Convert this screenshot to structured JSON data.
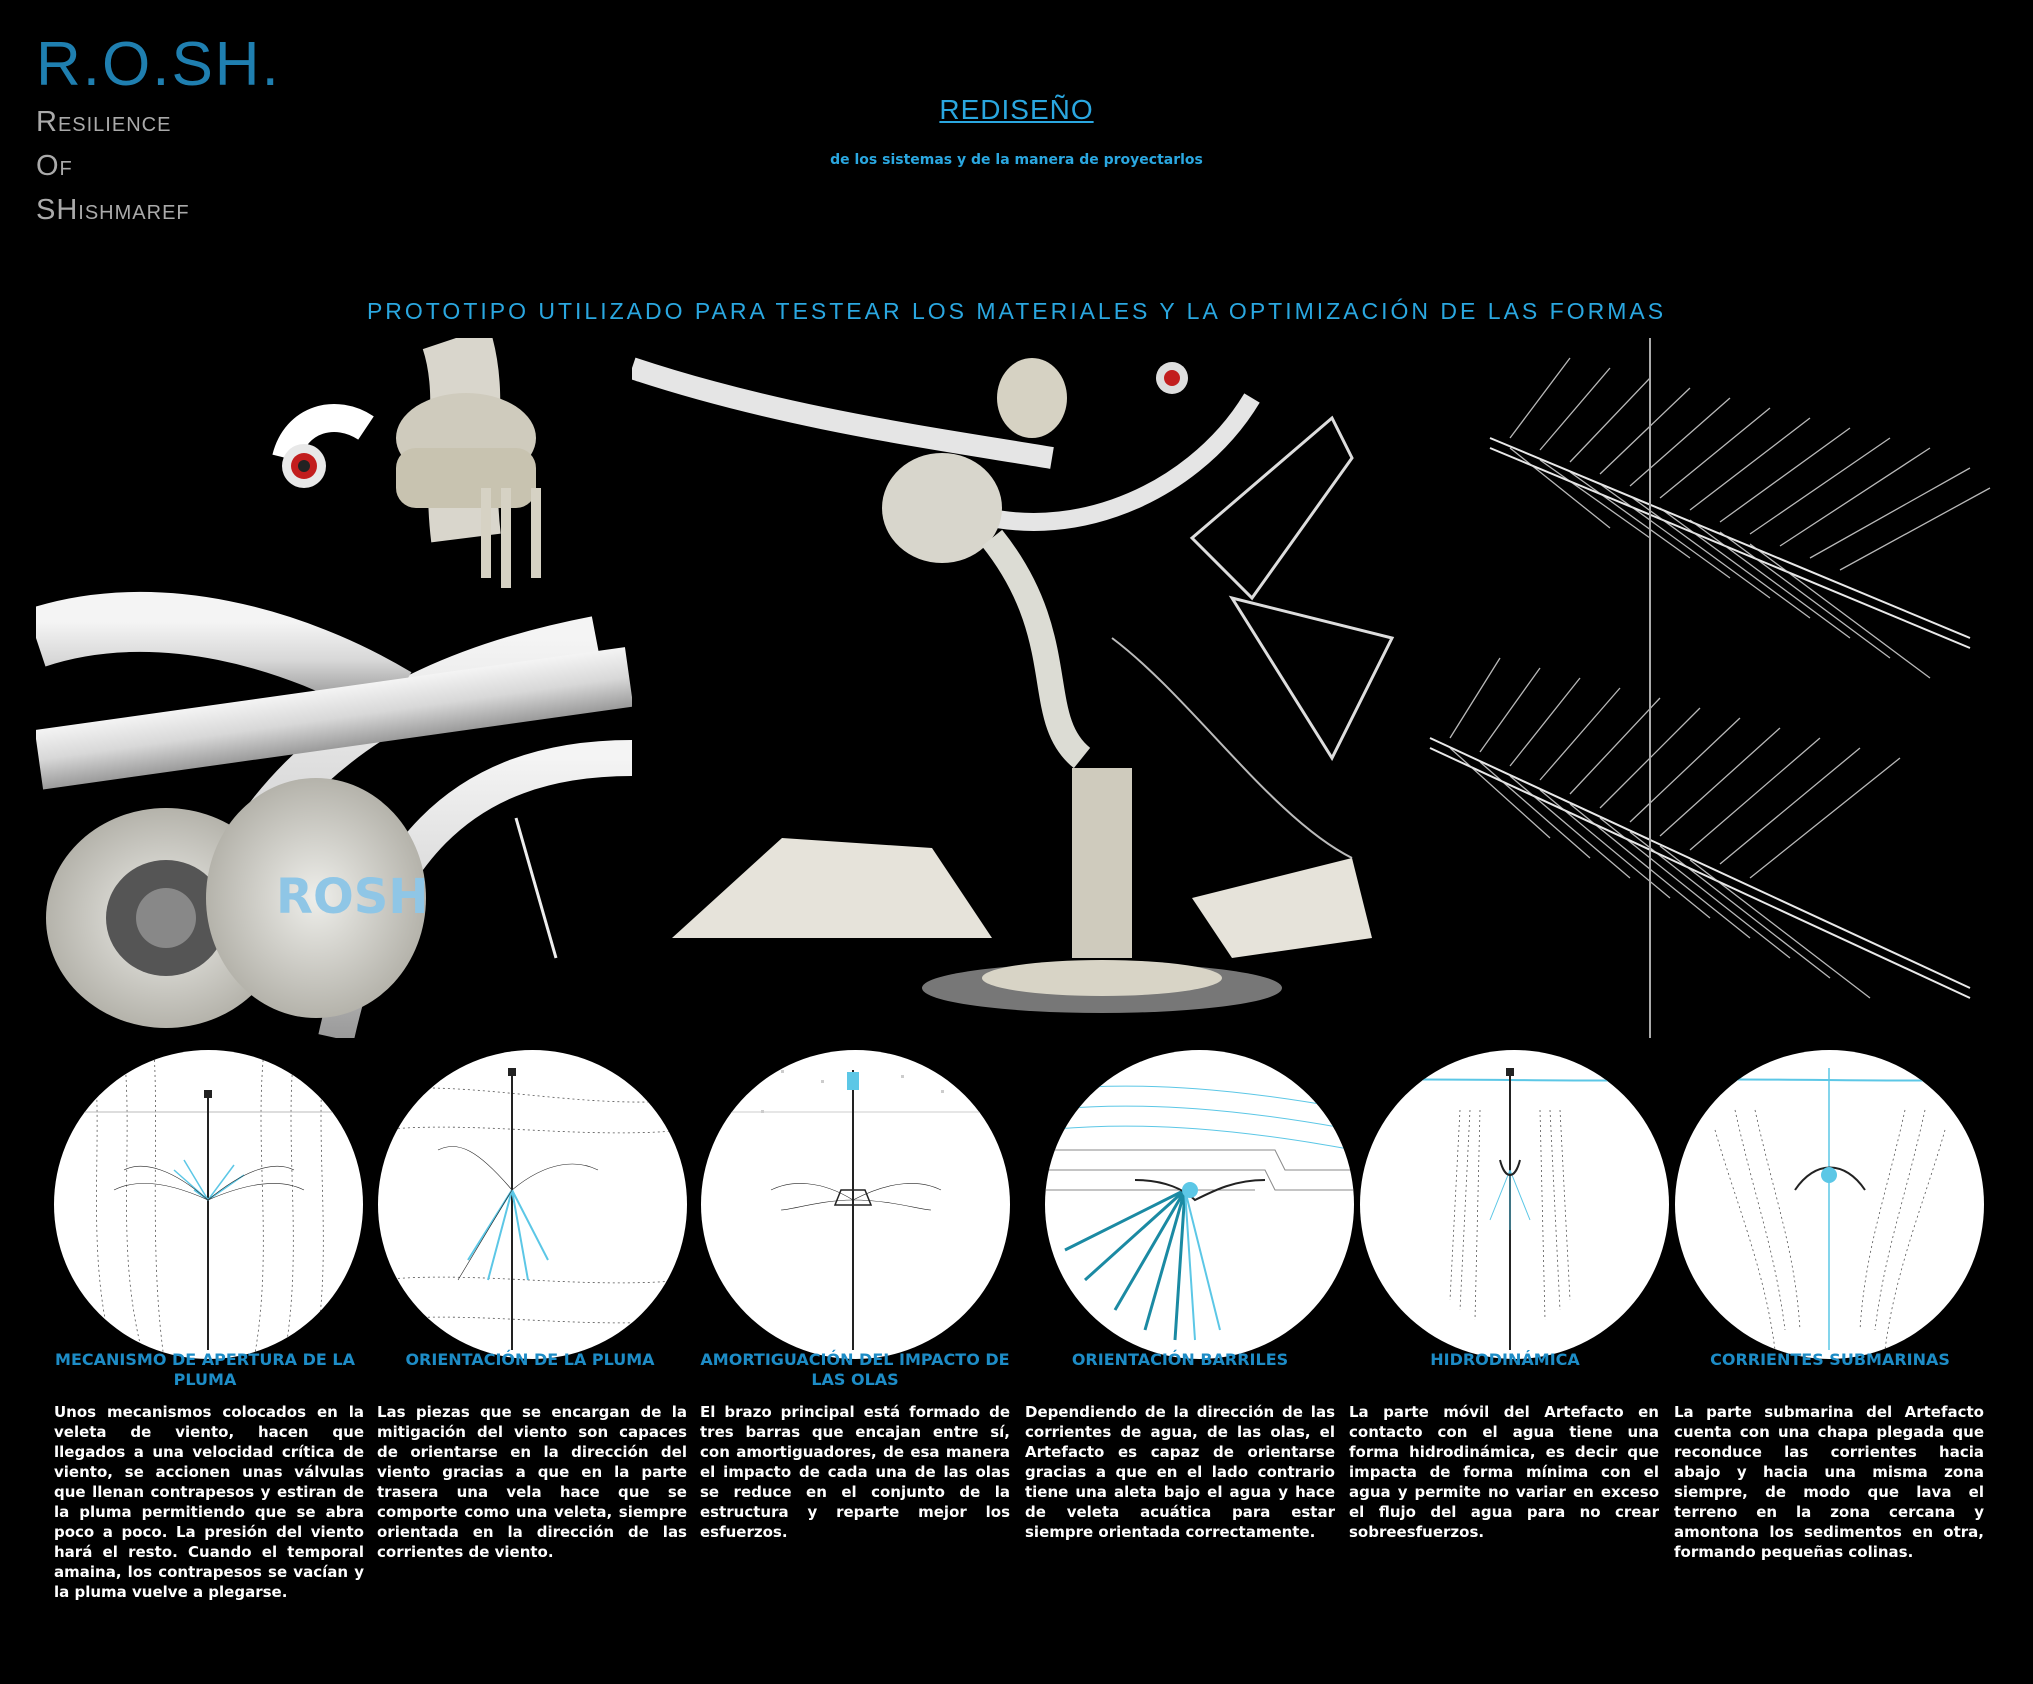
{
  "logo": {
    "title": "R.O.SH.",
    "lines": [
      "Resilience",
      "Of",
      "SHishmaref"
    ]
  },
  "header": {
    "title": "REDISEÑO",
    "subtitle": "de los sistemas y de la manera de proyectarlos"
  },
  "prototype": {
    "title": "PROTOTIPO UTILIZADO PARA TESTEAR LOS MATERIALES Y LA OPTIMIZACIÓN DE LAS FORMAS",
    "photo_label": "ROSH"
  },
  "panels": [
    {
      "caption": "MECANISMO DE APERTURA DE LA PLUMA",
      "text": "Unos mecanismos colocados en la veleta de viento, hacen que llegados a una velocidad crítica de viento, se accionen unas válvulas que llenan contrapesos y estiran de la pluma permitiendo que se abra poco a poco. La presión del viento hará el resto. Cuando el temporal amaina, los contrapesos se vacían y la pluma vuelve a plegarse."
    },
    {
      "caption": "ORIENTACIÓN DE LA PLUMA",
      "text": "Las piezas que se encargan de la mitigación del viento son capaces de orientarse en la dirección del viento gracias a que en la parte trasera una vela hace que se comporte como una veleta, siempre orientada en la dirección de las corrientes de viento."
    },
    {
      "caption": "AMORTIGUACIÓN DEL IMPACTO DE LAS OLAS",
      "text": "El brazo principal está formado de tres barras que encajan entre sí, con amortiguadores, de esa manera el impacto de cada una de las olas se reduce en el conjunto de la estructura y reparte mejor los esfuerzos."
    },
    {
      "caption": "ORIENTACIÓN BARRILES",
      "text": "Dependiendo de la dirección de las corrientes de agua, de las olas, el Artefacto es capaz de orientarse gracias a que en el lado contrario tiene una aleta bajo el agua y hace de veleta acuática para estar siempre orientada correctamente."
    },
    {
      "caption": "HIDRODINÁMICA",
      "text": "La parte móvil del Artefacto en contacto con el agua tiene una forma hidrodinámica, es decir que impacta de forma mínima con el agua y permite no variar en exceso el flujo del agua para no crear sobreesfuerzos."
    },
    {
      "caption": "CORRIENTES SUBMARINAS",
      "text": "La parte submarina del Artefacto cuenta con una chapa plegada que reconduce las corrientes hacia abajo y hacia una misma zona siempre, de modo que lava el terreno en la zona cercana y amontona los sedimentos en otra, formando pequeñas colinas."
    }
  ],
  "colors": {
    "accent": "#2aa7e0",
    "logo": "#1f7fb0",
    "diagram_blue": "#5cc7e6"
  }
}
